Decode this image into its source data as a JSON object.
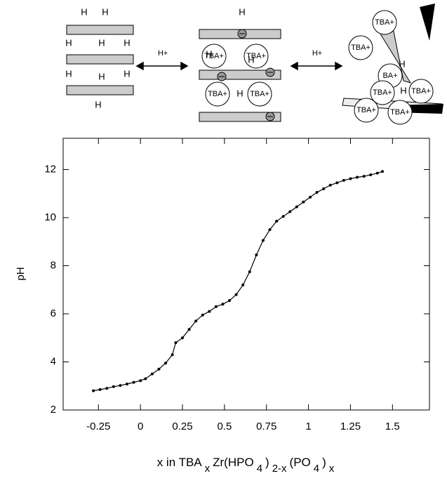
{
  "chart_data": {
    "type": "line",
    "ylabel": "pH",
    "xlabel_parts": [
      {
        "text": "x in TBA"
      },
      {
        "text": "x",
        "sub": true
      },
      {
        "text": "Zr(HPO"
      },
      {
        "text": "4",
        "sub": true
      },
      {
        "text": ")"
      },
      {
        "text": "2-x",
        "sub": true
      },
      {
        "text": "(PO"
      },
      {
        "text": "4",
        "sub": true
      },
      {
        "text": ")"
      },
      {
        "text": "x",
        "sub": true
      }
    ],
    "x": [
      -0.28,
      -0.24,
      -0.2,
      -0.16,
      -0.12,
      -0.08,
      -0.04,
      0,
      0.03,
      0.07,
      0.11,
      0.15,
      0.19,
      0.21,
      0.25,
      0.29,
      0.33,
      0.37,
      0.41,
      0.45,
      0.49,
      0.53,
      0.57,
      0.61,
      0.65,
      0.69,
      0.73,
      0.77,
      0.81,
      0.85,
      0.89,
      0.93,
      0.97,
      1.01,
      1.05,
      1.09,
      1.13,
      1.17,
      1.21,
      1.25,
      1.29,
      1.33,
      1.37,
      1.41,
      1.44
    ],
    "values": [
      2.8,
      2.85,
      2.9,
      2.97,
      3.02,
      3.08,
      3.15,
      3.22,
      3.3,
      3.5,
      3.7,
      3.95,
      4.3,
      4.8,
      5.0,
      5.35,
      5.7,
      5.95,
      6.1,
      6.3,
      6.4,
      6.55,
      6.8,
      7.2,
      7.75,
      8.45,
      9.05,
      9.5,
      9.85,
      10.05,
      10.25,
      10.45,
      10.65,
      10.85,
      11.05,
      11.2,
      11.35,
      11.45,
      11.55,
      11.62,
      11.68,
      11.72,
      11.78,
      11.85,
      11.92
    ],
    "color": "#000000",
    "xlim": [
      -0.46,
      1.72
    ],
    "ylim": [
      2,
      13.3
    ],
    "xticks": [
      -0.25,
      0,
      0.25,
      0.5,
      0.75,
      1,
      1.25,
      1.5
    ],
    "yticks": [
      2,
      4,
      6,
      8,
      10,
      12
    ],
    "grid": false
  },
  "diagram": {
    "arrows": [
      "H+",
      "H+"
    ],
    "panels": [
      {
        "h": [
          "H",
          "H",
          "H",
          "H",
          "H",
          "H",
          "H",
          "H",
          "H"
        ],
        "ions": []
      },
      {
        "h": [
          "H",
          "H",
          "H",
          "H"
        ],
        "ions": [
          "TBA+",
          "TBA+",
          "TBA+",
          "TBA+"
        ]
      },
      {
        "h": [
          "H",
          "H"
        ],
        "ions": [
          "TBA+",
          "TBA+",
          "BA+",
          "TBA+",
          "TBA+",
          "TBA+",
          "TBA+"
        ]
      }
    ]
  }
}
